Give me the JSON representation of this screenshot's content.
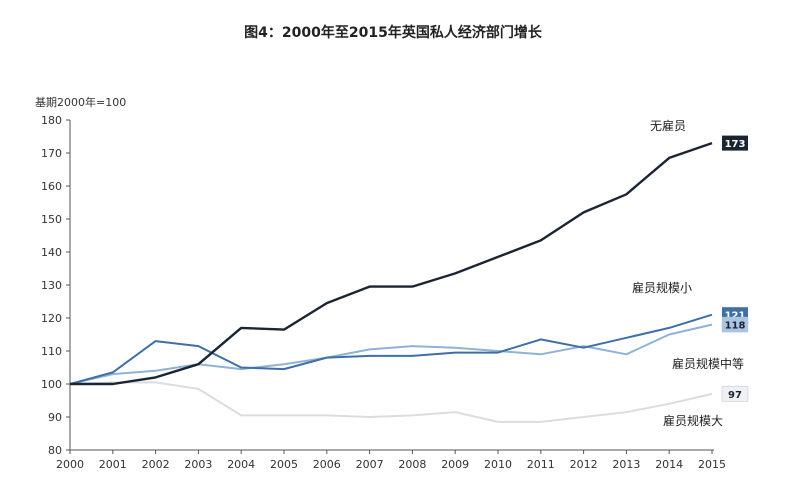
{
  "chart_data": {
    "type": "line",
    "title": "图4：2000年至2015年英国私人经济部门增长",
    "ylabel": "基期2000年=100",
    "xlabel": "",
    "x": [
      "2000",
      "2001",
      "2002",
      "2003",
      "2004",
      "2005",
      "2006",
      "2007",
      "2008",
      "2009",
      "2010",
      "2011",
      "2012",
      "2013",
      "2014",
      "2015"
    ],
    "yticks": [
      80,
      90,
      100,
      110,
      120,
      130,
      140,
      150,
      160,
      170,
      180
    ],
    "ylim": [
      80,
      180
    ],
    "grid": false,
    "series": [
      {
        "name": "无雇员",
        "color": "#1b2433",
        "values": [
          100,
          100,
          102,
          106,
          117,
          116.5,
          124.5,
          129.5,
          129.5,
          133.5,
          138.5,
          143.5,
          152,
          157.5,
          168.5,
          173
        ],
        "end_label": "173",
        "label_bg": "#1b2433",
        "label_fg": "#ffffff"
      },
      {
        "name": "雇员规模小",
        "color": "#3f6fa8",
        "values": [
          100,
          103.5,
          113,
          111.5,
          105,
          104.5,
          108,
          108.5,
          108.5,
          109.5,
          109.5,
          113.5,
          111,
          114,
          117,
          121
        ],
        "end_label": "121",
        "label_bg": "#3f6fa8",
        "label_fg": "#ffffff"
      },
      {
        "name": "雇员规模中等",
        "color": "#8fb3d6",
        "values": [
          100,
          103,
          104,
          106,
          104.5,
          106,
          108,
          110.5,
          111.5,
          111,
          110,
          109,
          111.5,
          109,
          115,
          118
        ],
        "end_label": "118",
        "label_bg": "#a9c5e2",
        "label_fg": "#1b2433"
      },
      {
        "name": "雇员规模大",
        "color": "#d9dde3",
        "values": [
          100,
          100.5,
          100.5,
          98.5,
          90.5,
          90.5,
          90.5,
          90,
          90.5,
          91.5,
          88.5,
          88.5,
          90,
          91.5,
          94,
          97
        ],
        "end_label": "97",
        "label_bg": "#eef0f3",
        "label_fg": "#1b2433"
      }
    ]
  }
}
